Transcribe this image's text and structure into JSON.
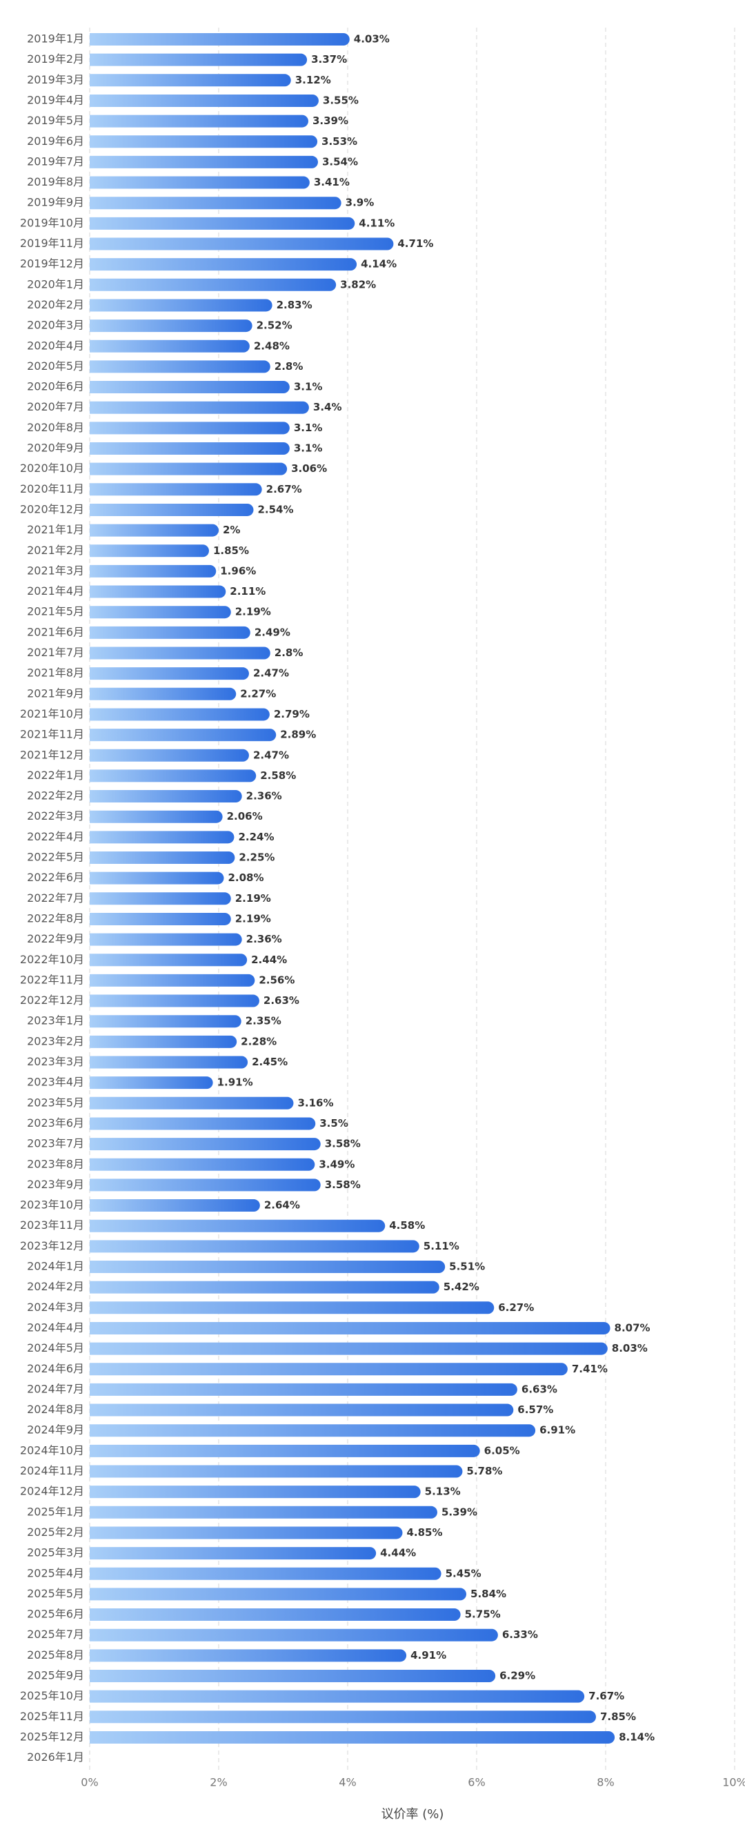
{
  "chart_data": {
    "type": "bar",
    "orientation": "horizontal",
    "x_label": "议价率 (%)",
    "categories": [
      "2019年1月",
      "2019年2月",
      "2019年3月",
      "2019年4月",
      "2019年5月",
      "2019年6月",
      "2019年7月",
      "2019年8月",
      "2019年9月",
      "2019年10月",
      "2019年11月",
      "2019年12月",
      "2020年1月",
      "2020年2月",
      "2020年3月",
      "2020年4月",
      "2020年5月",
      "2020年6月",
      "2020年7月",
      "2020年8月",
      "2020年9月",
      "2020年10月",
      "2020年11月",
      "2020年12月",
      "2021年1月",
      "2021年2月",
      "2021年3月",
      "2021年4月",
      "2021年5月",
      "2021年6月",
      "2021年7月",
      "2021年8月",
      "2021年9月",
      "2021年10月",
      "2021年11月",
      "2021年12月",
      "2022年1月",
      "2022年2月",
      "2022年3月",
      "2022年4月",
      "2022年5月",
      "2022年6月",
      "2022年7月",
      "2022年8月",
      "2022年9月",
      "2022年10月",
      "2022年11月",
      "2022年12月",
      "2023年1月",
      "2023年2月",
      "2023年3月",
      "2023年4月",
      "2023年5月",
      "2023年6月",
      "2023年7月",
      "2023年8月",
      "2023年9月",
      "2023年10月",
      "2023年11月",
      "2023年12月",
      "2024年1月",
      "2024年2月",
      "2024年3月",
      "2024年4月",
      "2024年5月",
      "2024年6月",
      "2024年7月",
      "2024年8月",
      "2024年9月",
      "2024年10月",
      "2024年11月",
      "2024年12月",
      "2025年1月",
      "2025年2月",
      "2025年3月",
      "2025年4月",
      "2025年5月",
      "2025年6月",
      "2025年7月",
      "2025年8月",
      "2025年9月",
      "2025年10月",
      "2025年11月",
      "2025年12月",
      "2026年1月"
    ],
    "values": [
      4.03,
      3.37,
      3.12,
      3.55,
      3.39,
      3.53,
      3.54,
      3.41,
      3.9,
      4.11,
      4.71,
      4.14,
      3.82,
      2.83,
      2.52,
      2.48,
      2.8,
      3.1,
      3.4,
      3.1,
      3.1,
      3.06,
      2.67,
      2.54,
      2,
      1.85,
      1.96,
      2.11,
      2.19,
      2.49,
      2.8,
      2.47,
      2.27,
      2.79,
      2.89,
      2.47,
      2.58,
      2.36,
      2.06,
      2.24,
      2.25,
      2.08,
      2.19,
      2.19,
      2.36,
      2.44,
      2.56,
      2.63,
      2.35,
      2.28,
      2.45,
      1.91,
      3.16,
      3.5,
      3.58,
      3.49,
      3.58,
      2.64,
      4.58,
      5.11,
      5.51,
      5.42,
      6.27,
      8.07,
      8.03,
      7.41,
      6.63,
      6.57,
      6.91,
      6.05,
      5.78,
      5.13,
      5.39,
      4.85,
      4.44,
      5.45,
      5.84,
      5.75,
      6.33,
      4.91,
      6.29,
      7.67,
      7.85,
      8.14,
      null
    ],
    "value_labels": [
      "4.03%",
      "3.37%",
      "3.12%",
      "3.55%",
      "3.39%",
      "3.53%",
      "3.54%",
      "3.41%",
      "3.9%",
      "4.11%",
      "4.71%",
      "4.14%",
      "3.82%",
      "2.83%",
      "2.52%",
      "2.48%",
      "2.8%",
      "3.1%",
      "3.4%",
      "3.1%",
      "3.1%",
      "3.06%",
      "2.67%",
      "2.54%",
      "2%",
      "1.85%",
      "1.96%",
      "2.11%",
      "2.19%",
      "2.49%",
      "2.8%",
      "2.47%",
      "2.27%",
      "2.79%",
      "2.89%",
      "2.47%",
      "2.58%",
      "2.36%",
      "2.06%",
      "2.24%",
      "2.25%",
      "2.08%",
      "2.19%",
      "2.19%",
      "2.36%",
      "2.44%",
      "2.56%",
      "2.63%",
      "2.35%",
      "2.28%",
      "2.45%",
      "1.91%",
      "3.16%",
      "3.5%",
      "3.58%",
      "3.49%",
      "3.58%",
      "2.64%",
      "4.58%",
      "5.11%",
      "5.51%",
      "5.42%",
      "6.27%",
      "8.07%",
      "8.03%",
      "7.41%",
      "6.63%",
      "6.57%",
      "6.91%",
      "6.05%",
      "5.78%",
      "5.13%",
      "5.39%",
      "4.85%",
      "4.44%",
      "5.45%",
      "5.84%",
      "5.75%",
      "6.33%",
      "4.91%",
      "6.29%",
      "7.67%",
      "7.85%",
      "8.14%",
      null
    ],
    "color": "#2f6fe0",
    "color_start": "#a9cff8",
    "xlim": [
      0,
      10
    ],
    "xticks": [
      {
        "value": 0,
        "label": "0%"
      },
      {
        "value": 2,
        "label": "2%"
      },
      {
        "value": 4,
        "label": "4%"
      },
      {
        "value": 6,
        "label": "6%"
      },
      {
        "value": 8,
        "label": "8%"
      },
      {
        "value": 10,
        "label": "10%"
      }
    ],
    "grid": true
  }
}
